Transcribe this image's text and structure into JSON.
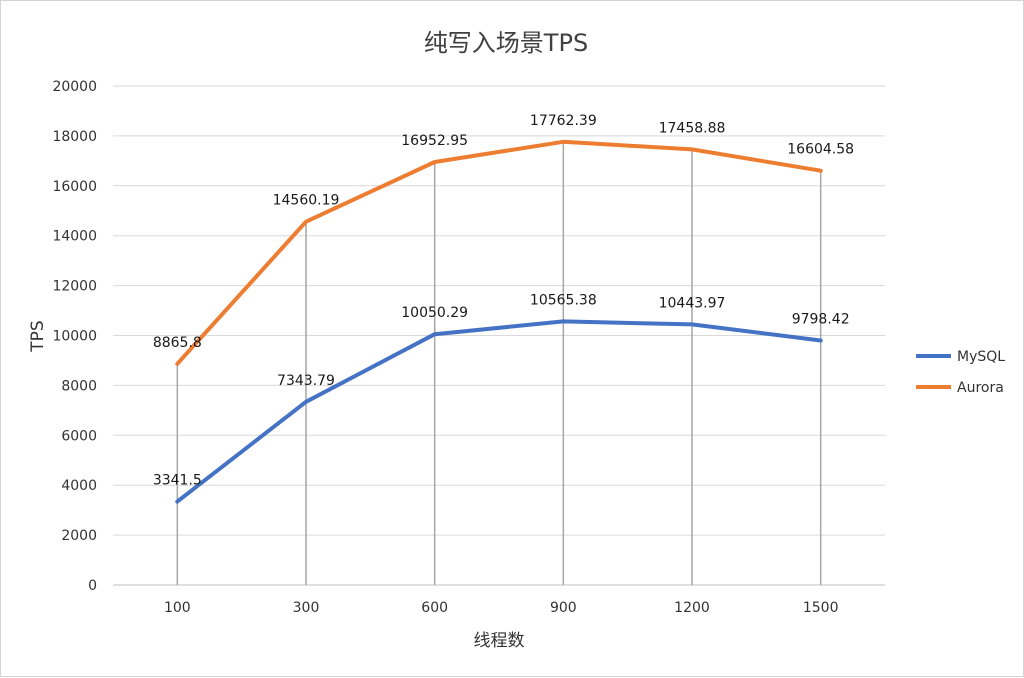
{
  "chart_data": {
    "type": "line",
    "title": "纯写入场景TPS",
    "xlabel": "线程数",
    "ylabel": "TPS",
    "categories": [
      "100",
      "300",
      "600",
      "900",
      "1200",
      "1500"
    ],
    "ylim": [
      0,
      20000
    ],
    "yticks": [
      0,
      2000,
      4000,
      6000,
      8000,
      10000,
      12000,
      14000,
      16000,
      18000,
      20000
    ],
    "grid": true,
    "legend_position": "right",
    "series": [
      {
        "name": "MySQL",
        "color": "#4472C4",
        "values": [
          3341.5,
          7343.79,
          10050.29,
          10565.38,
          10443.97,
          9798.42
        ],
        "labels": [
          "3341.5",
          "7343.79",
          "10050.29",
          "10565.38",
          "10443.97",
          "9798.42"
        ]
      },
      {
        "name": "Aurora",
        "color": "#ED7D31",
        "values": [
          8865.8,
          14560.19,
          16952.95,
          17762.39,
          17458.88,
          16604.58
        ],
        "labels": [
          "8865.8",
          "14560.19",
          "16952.95",
          "17762.39",
          "17458.88",
          "16604.58"
        ]
      }
    ]
  }
}
